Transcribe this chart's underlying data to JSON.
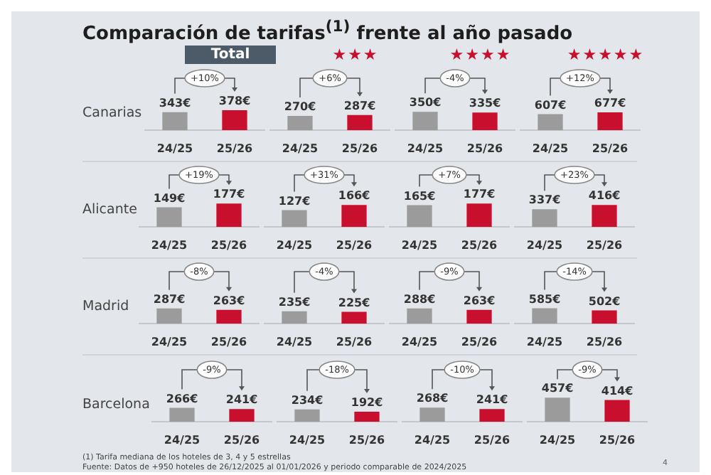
{
  "chart_data": [
    {
      "type": "other",
      "title": "Comparación de tarifas$^{(1)}$ frente al año pasado",
      "annotations": [
        "Total",
        "★★★",
        "★★★★",
        "★★★★★",
        "Canarias",
        "Alicante",
        "Madrid",
        "Barcelona",
        "(1) Tarifa mediana de los hoteles de 3, 4 y 5 estrellas",
        "Fuente: Datos de +950 hoteles de 26/12/2025 al 01/01/2026 y periodo comparable de 2024/2025",
        "4"
      ]
    },
    {
      "type": "bar",
      "categories": [
        "24/25",
        "25/26"
      ],
      "values": [
        343,
        378
      ],
      "colors": [
        "#9b9b9b",
        "#c8102e"
      ],
      "data_labels": true,
      "value_labels": [
        "343€",
        "378€"
      ],
      "annotations": [
        "+10%"
      ]
    },
    {
      "type": "bar",
      "categories": [
        "24/25",
        "25/26"
      ],
      "values": [
        270,
        287
      ],
      "colors": [
        "#9b9b9b",
        "#c8102e"
      ],
      "data_labels": true,
      "value_labels": [
        "270€",
        "287€"
      ],
      "annotations": [
        "+6%"
      ]
    },
    {
      "type": "bar",
      "categories": [
        "24/25",
        "25/26"
      ],
      "values": [
        350,
        335
      ],
      "colors": [
        "#9b9b9b",
        "#c8102e"
      ],
      "data_labels": true,
      "value_labels": [
        "350€",
        "335€"
      ],
      "annotations": [
        "-4%"
      ]
    },
    {
      "type": "bar",
      "categories": [
        "24/25",
        "25/26"
      ],
      "values": [
        607,
        677
      ],
      "colors": [
        "#9b9b9b",
        "#c8102e"
      ],
      "data_labels": true,
      "value_labels": [
        "607€",
        "677€"
      ],
      "annotations": [
        "+12%"
      ]
    },
    {
      "type": "bar",
      "categories": [
        "24/25",
        "25/26"
      ],
      "values": [
        149,
        177
      ],
      "colors": [
        "#9b9b9b",
        "#c8102e"
      ],
      "data_labels": true,
      "value_labels": [
        "149€",
        "177€"
      ],
      "annotations": [
        "+19%"
      ]
    },
    {
      "type": "bar",
      "categories": [
        "24/25",
        "25/26"
      ],
      "values": [
        127,
        166
      ],
      "colors": [
        "#9b9b9b",
        "#c8102e"
      ],
      "data_labels": true,
      "value_labels": [
        "127€",
        "166€"
      ],
      "annotations": [
        "+31%"
      ]
    },
    {
      "type": "bar",
      "categories": [
        "24/25",
        "25/26"
      ],
      "values": [
        165,
        177
      ],
      "colors": [
        "#9b9b9b",
        "#c8102e"
      ],
      "data_labels": true,
      "value_labels": [
        "165€",
        "177€"
      ],
      "annotations": [
        "+7%"
      ]
    },
    {
      "type": "bar",
      "categories": [
        "24/25",
        "25/26"
      ],
      "values": [
        337,
        416
      ],
      "colors": [
        "#9b9b9b",
        "#c8102e"
      ],
      "data_labels": true,
      "value_labels": [
        "337€",
        "416€"
      ],
      "annotations": [
        "+23%"
      ]
    },
    {
      "type": "bar",
      "categories": [
        "24/25",
        "25/26"
      ],
      "values": [
        287,
        263
      ],
      "colors": [
        "#9b9b9b",
        "#c8102e"
      ],
      "data_labels": true,
      "value_labels": [
        "287€",
        "263€"
      ],
      "annotations": [
        "-8%"
      ]
    },
    {
      "type": "bar",
      "categories": [
        "24/25",
        "25/26"
      ],
      "values": [
        235,
        225
      ],
      "colors": [
        "#9b9b9b",
        "#c8102e"
      ],
      "data_labels": true,
      "value_labels": [
        "235€",
        "225€"
      ],
      "annotations": [
        "-4%"
      ]
    },
    {
      "type": "bar",
      "categories": [
        "24/25",
        "25/26"
      ],
      "values": [
        288,
        263
      ],
      "colors": [
        "#9b9b9b",
        "#c8102e"
      ],
      "data_labels": true,
      "value_labels": [
        "288€",
        "263€"
      ],
      "annotations": [
        "-9%"
      ]
    },
    {
      "type": "bar",
      "categories": [
        "24/25",
        "25/26"
      ],
      "values": [
        585,
        502
      ],
      "colors": [
        "#9b9b9b",
        "#c8102e"
      ],
      "data_labels": true,
      "value_labels": [
        "585€",
        "502€"
      ],
      "annotations": [
        "-14%"
      ]
    },
    {
      "type": "bar",
      "categories": [
        "24/25",
        "25/26"
      ],
      "values": [
        266,
        241
      ],
      "colors": [
        "#9b9b9b",
        "#c8102e"
      ],
      "data_labels": true,
      "value_labels": [
        "266€",
        "241€"
      ],
      "annotations": [
        "-9%"
      ]
    },
    {
      "type": "bar",
      "categories": [
        "24/25",
        "25/26"
      ],
      "values": [
        234,
        192
      ],
      "colors": [
        "#9b9b9b",
        "#c8102e"
      ],
      "data_labels": true,
      "value_labels": [
        "234€",
        "192€"
      ],
      "annotations": [
        "-18%"
      ]
    },
    {
      "type": "bar",
      "categories": [
        "24/25",
        "25/26"
      ],
      "values": [
        268,
        241
      ],
      "colors": [
        "#9b9b9b",
        "#c8102e"
      ],
      "data_labels": true,
      "value_labels": [
        "268€",
        "241€"
      ],
      "annotations": [
        "-10%"
      ]
    },
    {
      "type": "bar",
      "categories": [
        "24/25",
        "25/26"
      ],
      "values": [
        457,
        414
      ],
      "colors": [
        "#9b9b9b",
        "#c8102e"
      ],
      "data_labels": true,
      "value_labels": [
        "457€",
        "414€"
      ],
      "annotations": [
        "-9%"
      ]
    }
  ]
}
